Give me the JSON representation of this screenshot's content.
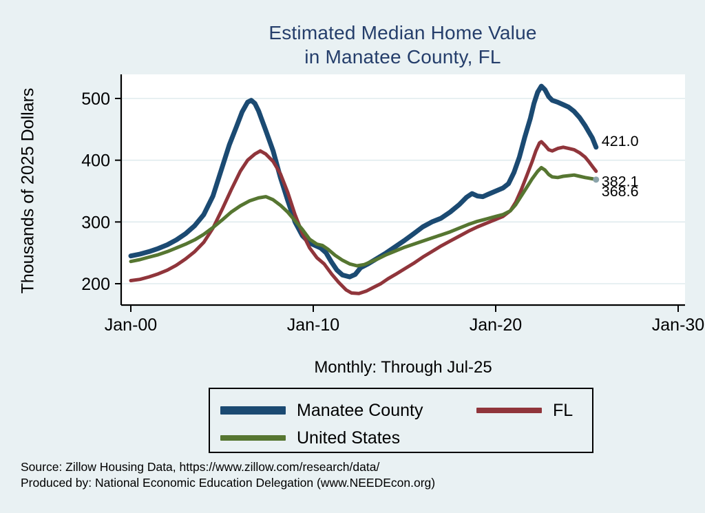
{
  "title": {
    "line1": "Estimated Median Home Value",
    "line2": "in Manatee County, FL"
  },
  "subtitle": "Monthly: Through Jul-25",
  "y_axis_label": "Thousands of 2025 Dollars",
  "source": {
    "line1": "Source: Zillow Housing Data, https://www.zillow.com/research/data/",
    "line2": "Produced by: National Economic Education Delegation (www.NEEDEcon.org)"
  },
  "colors": {
    "page_background": "#e9f1f3",
    "plot_background": "#ffffff",
    "gridline": "#dfebee",
    "axis": "#000000",
    "title_text": "#253e6b",
    "manatee_blue": "#1b4a72",
    "florida_maroon": "#90353b",
    "us_green": "#567631",
    "end_marker": "#8ba4ab"
  },
  "chart_data": {
    "type": "line",
    "title": "Estimated Median Home Value in Manatee County, FL",
    "subtitle": "Monthly: Through Jul-25",
    "xlabel": "",
    "ylabel": "Thousands of 2025 Dollars",
    "x_unit": "decimal_years",
    "xlim": [
      1999.5,
      2030.4
    ],
    "ylim": [
      166,
      537
    ],
    "grid": "horizontal",
    "legend_position": "bottom",
    "yticks": [
      {
        "value": 200,
        "label": "200"
      },
      {
        "value": 300,
        "label": "300"
      },
      {
        "value": 400,
        "label": "400"
      },
      {
        "value": 500,
        "label": "500"
      }
    ],
    "xticks": [
      {
        "value": 2000,
        "label": "Jan-00"
      },
      {
        "value": 2010,
        "label": "Jan-10"
      },
      {
        "value": 2020,
        "label": "Jan-20"
      },
      {
        "value": 2030,
        "label": "Jan-30"
      }
    ],
    "series": [
      {
        "name": "Manatee County",
        "color": "#1b4a72",
        "width": 7,
        "end_label": "421.0",
        "end_label_dy": -10,
        "points": [
          [
            2000.0,
            245
          ],
          [
            2000.5,
            248
          ],
          [
            2001.0,
            252
          ],
          [
            2001.5,
            257
          ],
          [
            2002.0,
            263
          ],
          [
            2002.5,
            271
          ],
          [
            2003.0,
            281
          ],
          [
            2003.5,
            294
          ],
          [
            2004.0,
            312
          ],
          [
            2004.5,
            342
          ],
          [
            2005.0,
            388
          ],
          [
            2005.4,
            425
          ],
          [
            2005.8,
            455
          ],
          [
            2006.1,
            478
          ],
          [
            2006.4,
            494
          ],
          [
            2006.6,
            497
          ],
          [
            2006.8,
            492
          ],
          [
            2007.0,
            480
          ],
          [
            2007.4,
            448
          ],
          [
            2007.8,
            415
          ],
          [
            2008.2,
            372
          ],
          [
            2008.6,
            335
          ],
          [
            2009.0,
            300
          ],
          [
            2009.4,
            278
          ],
          [
            2009.8,
            266
          ],
          [
            2010.1,
            262
          ],
          [
            2010.4,
            258
          ],
          [
            2010.7,
            250
          ],
          [
            2011.0,
            235
          ],
          [
            2011.3,
            222
          ],
          [
            2011.6,
            214
          ],
          [
            2012.0,
            211
          ],
          [
            2012.3,
            215
          ],
          [
            2012.6,
            226
          ],
          [
            2013.0,
            232
          ],
          [
            2013.5,
            241
          ],
          [
            2014.0,
            250
          ],
          [
            2014.5,
            260
          ],
          [
            2015.0,
            270
          ],
          [
            2015.5,
            281
          ],
          [
            2016.0,
            292
          ],
          [
            2016.5,
            300
          ],
          [
            2017.0,
            306
          ],
          [
            2017.5,
            316
          ],
          [
            2018.0,
            328
          ],
          [
            2018.4,
            340
          ],
          [
            2018.7,
            346
          ],
          [
            2019.0,
            342
          ],
          [
            2019.3,
            341
          ],
          [
            2019.6,
            345
          ],
          [
            2020.0,
            350
          ],
          [
            2020.4,
            355
          ],
          [
            2020.7,
            362
          ],
          [
            2021.0,
            380
          ],
          [
            2021.3,
            405
          ],
          [
            2021.6,
            438
          ],
          [
            2021.9,
            468
          ],
          [
            2022.1,
            492
          ],
          [
            2022.3,
            510
          ],
          [
            2022.5,
            520
          ],
          [
            2022.7,
            514
          ],
          [
            2022.9,
            503
          ],
          [
            2023.1,
            497
          ],
          [
            2023.4,
            494
          ],
          [
            2023.7,
            490
          ],
          [
            2024.0,
            486
          ],
          [
            2024.3,
            479
          ],
          [
            2024.6,
            469
          ],
          [
            2024.9,
            456
          ],
          [
            2025.1,
            446
          ],
          [
            2025.3,
            436
          ],
          [
            2025.5,
            421
          ]
        ]
      },
      {
        "name": "FL",
        "color": "#90353b",
        "width": 5,
        "end_label": "382.1",
        "end_label_dy": 14,
        "points": [
          [
            2000.0,
            205
          ],
          [
            2000.5,
            207
          ],
          [
            2001.0,
            211
          ],
          [
            2001.5,
            216
          ],
          [
            2002.0,
            222
          ],
          [
            2002.5,
            230
          ],
          [
            2003.0,
            240
          ],
          [
            2003.5,
            252
          ],
          [
            2004.0,
            267
          ],
          [
            2004.5,
            290
          ],
          [
            2005.0,
            320
          ],
          [
            2005.5,
            352
          ],
          [
            2006.0,
            382
          ],
          [
            2006.4,
            400
          ],
          [
            2006.8,
            410
          ],
          [
            2007.1,
            415
          ],
          [
            2007.4,
            410
          ],
          [
            2007.8,
            398
          ],
          [
            2008.2,
            378
          ],
          [
            2008.6,
            348
          ],
          [
            2009.0,
            312
          ],
          [
            2009.4,
            282
          ],
          [
            2009.8,
            258
          ],
          [
            2010.2,
            242
          ],
          [
            2010.6,
            232
          ],
          [
            2011.0,
            216
          ],
          [
            2011.4,
            202
          ],
          [
            2011.8,
            190
          ],
          [
            2012.1,
            185
          ],
          [
            2012.5,
            184
          ],
          [
            2012.9,
            188
          ],
          [
            2013.3,
            194
          ],
          [
            2013.7,
            200
          ],
          [
            2014.1,
            208
          ],
          [
            2014.5,
            215
          ],
          [
            2015.0,
            224
          ],
          [
            2015.5,
            233
          ],
          [
            2016.0,
            243
          ],
          [
            2016.5,
            252
          ],
          [
            2017.0,
            261
          ],
          [
            2017.5,
            269
          ],
          [
            2018.0,
            277
          ],
          [
            2018.5,
            285
          ],
          [
            2019.0,
            292
          ],
          [
            2019.5,
            298
          ],
          [
            2020.0,
            304
          ],
          [
            2020.4,
            309
          ],
          [
            2020.8,
            318
          ],
          [
            2021.1,
            332
          ],
          [
            2021.4,
            352
          ],
          [
            2021.7,
            375
          ],
          [
            2022.0,
            398
          ],
          [
            2022.2,
            415
          ],
          [
            2022.4,
            428
          ],
          [
            2022.5,
            430
          ],
          [
            2022.7,
            424
          ],
          [
            2022.9,
            417
          ],
          [
            2023.1,
            415
          ],
          [
            2023.4,
            419
          ],
          [
            2023.7,
            421
          ],
          [
            2024.0,
            419
          ],
          [
            2024.3,
            417
          ],
          [
            2024.6,
            412
          ],
          [
            2024.9,
            405
          ],
          [
            2025.1,
            398
          ],
          [
            2025.3,
            390
          ],
          [
            2025.5,
            382.1
          ]
        ]
      },
      {
        "name": "United States",
        "color": "#567631",
        "width": 5,
        "end_label": "368.6",
        "end_label_dy": 16,
        "end_marker": true,
        "points": [
          [
            2000.0,
            236
          ],
          [
            2000.5,
            239
          ],
          [
            2001.0,
            243
          ],
          [
            2001.5,
            247
          ],
          [
            2002.0,
            252
          ],
          [
            2002.5,
            258
          ],
          [
            2003.0,
            264
          ],
          [
            2003.5,
            271
          ],
          [
            2004.0,
            280
          ],
          [
            2004.5,
            291
          ],
          [
            2005.0,
            303
          ],
          [
            2005.5,
            316
          ],
          [
            2006.0,
            326
          ],
          [
            2006.5,
            334
          ],
          [
            2007.0,
            339
          ],
          [
            2007.4,
            341
          ],
          [
            2007.8,
            336
          ],
          [
            2008.2,
            327
          ],
          [
            2008.6,
            316
          ],
          [
            2009.0,
            302
          ],
          [
            2009.4,
            288
          ],
          [
            2009.8,
            272
          ],
          [
            2010.2,
            264
          ],
          [
            2010.5,
            262
          ],
          [
            2010.8,
            256
          ],
          [
            2011.2,
            246
          ],
          [
            2011.6,
            238
          ],
          [
            2012.0,
            232
          ],
          [
            2012.4,
            229
          ],
          [
            2012.8,
            231
          ],
          [
            2013.2,
            236
          ],
          [
            2013.6,
            241
          ],
          [
            2014.0,
            247
          ],
          [
            2014.5,
            253
          ],
          [
            2015.0,
            259
          ],
          [
            2015.5,
            264
          ],
          [
            2016.0,
            269
          ],
          [
            2016.5,
            274
          ],
          [
            2017.0,
            279
          ],
          [
            2017.5,
            284
          ],
          [
            2018.0,
            290
          ],
          [
            2018.5,
            296
          ],
          [
            2019.0,
            301
          ],
          [
            2019.5,
            305
          ],
          [
            2020.0,
            309
          ],
          [
            2020.4,
            312
          ],
          [
            2020.8,
            318
          ],
          [
            2021.1,
            328
          ],
          [
            2021.4,
            342
          ],
          [
            2021.7,
            356
          ],
          [
            2022.0,
            370
          ],
          [
            2022.3,
            382
          ],
          [
            2022.5,
            388
          ],
          [
            2022.7,
            384
          ],
          [
            2022.9,
            377
          ],
          [
            2023.1,
            373
          ],
          [
            2023.4,
            372
          ],
          [
            2023.7,
            374
          ],
          [
            2024.0,
            375
          ],
          [
            2024.3,
            376
          ],
          [
            2024.6,
            374
          ],
          [
            2024.9,
            372
          ],
          [
            2025.1,
            371
          ],
          [
            2025.3,
            370
          ],
          [
            2025.5,
            368.6
          ]
        ]
      }
    ]
  }
}
